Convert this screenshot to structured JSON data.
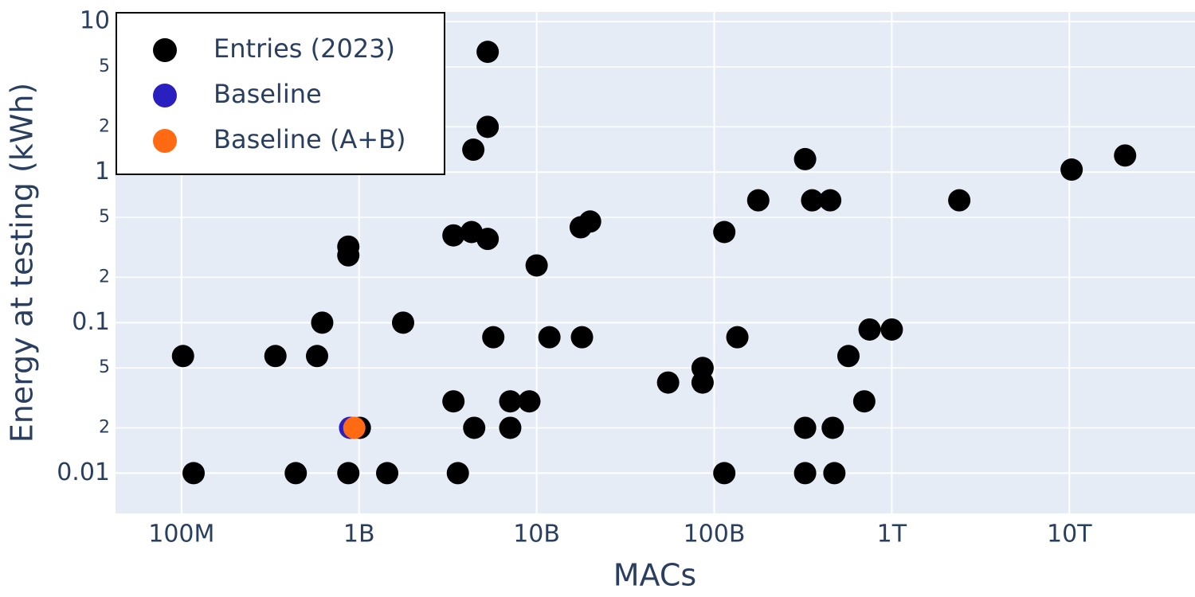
{
  "chart_data": {
    "type": "scatter",
    "x_label": "MACs",
    "y_label": "Energy at testing (kWh)",
    "x_scale": "log",
    "y_scale": "log",
    "grid": true,
    "legend": "top-left",
    "xlim": [
      42500000,
      51000000000000
    ],
    "ylim": [
      0.0054,
      11.6
    ],
    "xticks": [
      {
        "value": 100000000,
        "label": "100M"
      },
      {
        "value": 1000000000,
        "label": "1B"
      },
      {
        "value": 10000000000,
        "label": "10B"
      },
      {
        "value": 100000000000,
        "label": "100B"
      },
      {
        "value": 1000000000000,
        "label": "1T"
      },
      {
        "value": 10000000000000,
        "label": "10T"
      }
    ],
    "yticks": [
      0.01,
      {
        "value": 0.02,
        "label": "2"
      },
      {
        "value": 0.05,
        "label": "5"
      },
      0.1,
      {
        "value": 0.2,
        "label": "2"
      },
      {
        "value": 0.5,
        "label": "5"
      },
      1,
      {
        "value": 2,
        "label": "2"
      },
      {
        "value": 5,
        "label": "5"
      },
      10
    ],
    "series": [
      {
        "name": "Entries (2023)",
        "color": "#000000",
        "x": [
          102000000,
          117000000,
          338000000,
          440000000,
          580000000,
          620000000,
          870000000,
          870000000,
          870000000,
          1010000000,
          1440000000,
          1770000000,
          3400000000,
          3400000000,
          3600000000,
          4300000000,
          4450000000,
          4400000000,
          5300000000,
          5300000000,
          5300000000,
          5700000000,
          7100000000,
          7100000000,
          9100000000,
          10000000000,
          11800000000,
          17700000000,
          18000000000,
          20000000000,
          55000000000,
          86000000000,
          86000000000,
          114000000000,
          114000000000,
          135000000000,
          177000000000,
          325000000000,
          325000000000,
          325000000000,
          356000000000,
          450000000000,
          465000000000,
          475000000000,
          570000000000,
          700000000000,
          750000000000,
          1000000000000,
          2400000000000,
          10300000000000,
          20600000000000
        ],
        "values": [
          0.06,
          0.01,
          0.06,
          0.01,
          0.06,
          0.1,
          0.32,
          0.28,
          0.01,
          0.02,
          0.01,
          0.1,
          0.38,
          0.03,
          0.01,
          0.4,
          0.02,
          1.41,
          6.3,
          2,
          0.36,
          0.08,
          0.03,
          0.02,
          0.03,
          0.24,
          0.08,
          0.43,
          0.08,
          0.47,
          0.04,
          0.05,
          0.04,
          0.4,
          0.01,
          0.08,
          0.65,
          1.22,
          0.02,
          0.01,
          0.65,
          0.65,
          0.02,
          0.01,
          0.06,
          0.03,
          0.09,
          0.09,
          0.65,
          1.04,
          1.29
        ]
      },
      {
        "name": "Baseline",
        "color": "#2a1fbf",
        "x": [
          890000000
        ],
        "values": [
          0.02
        ]
      },
      {
        "name": "Baseline (A+B)",
        "color": "#ff6a13",
        "x": [
          940000000
        ],
        "values": [
          0.02
        ]
      }
    ]
  }
}
